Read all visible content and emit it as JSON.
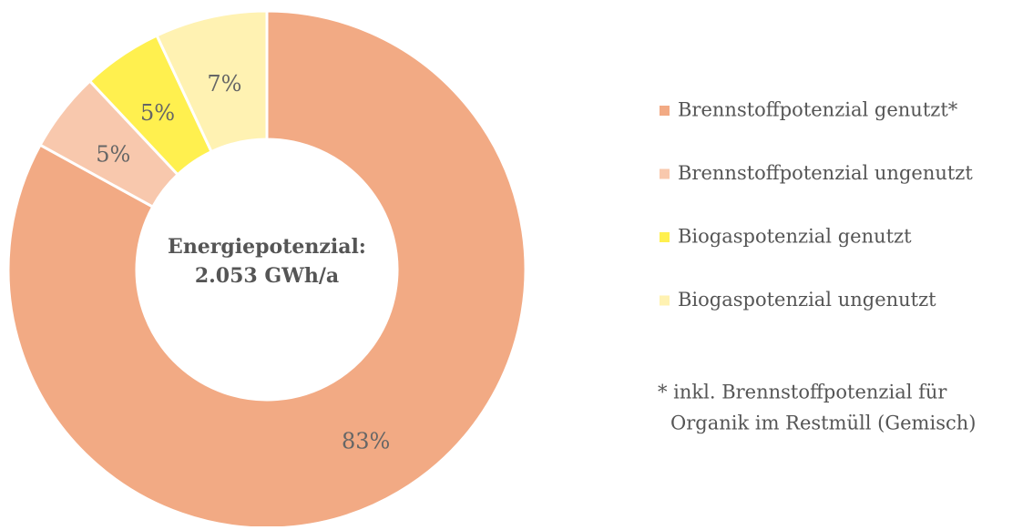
{
  "chart_data": {
    "type": "donut",
    "center_text": [
      "Energiepotenzial:",
      "2.053 GWh/a"
    ],
    "categories": [
      "Brennstoffpotenzial genutzt*",
      "Brennstoffpotenzial ungenutzt",
      "Biogaspotenzial genutzt",
      "Biogaspotenzial ungenutzt"
    ],
    "values": [
      83,
      5,
      5,
      7
    ],
    "value_labels": [
      "83%",
      "5%",
      "5%",
      "7%"
    ],
    "colors": [
      "#f2aa84",
      "#f8c8ad",
      "#fff04f",
      "#fff2b2"
    ],
    "legend": "right",
    "annotation": [
      "* inkl. Brennstoffpotenzial für",
      "Organik im Restmüll (Gemisch)"
    ]
  }
}
